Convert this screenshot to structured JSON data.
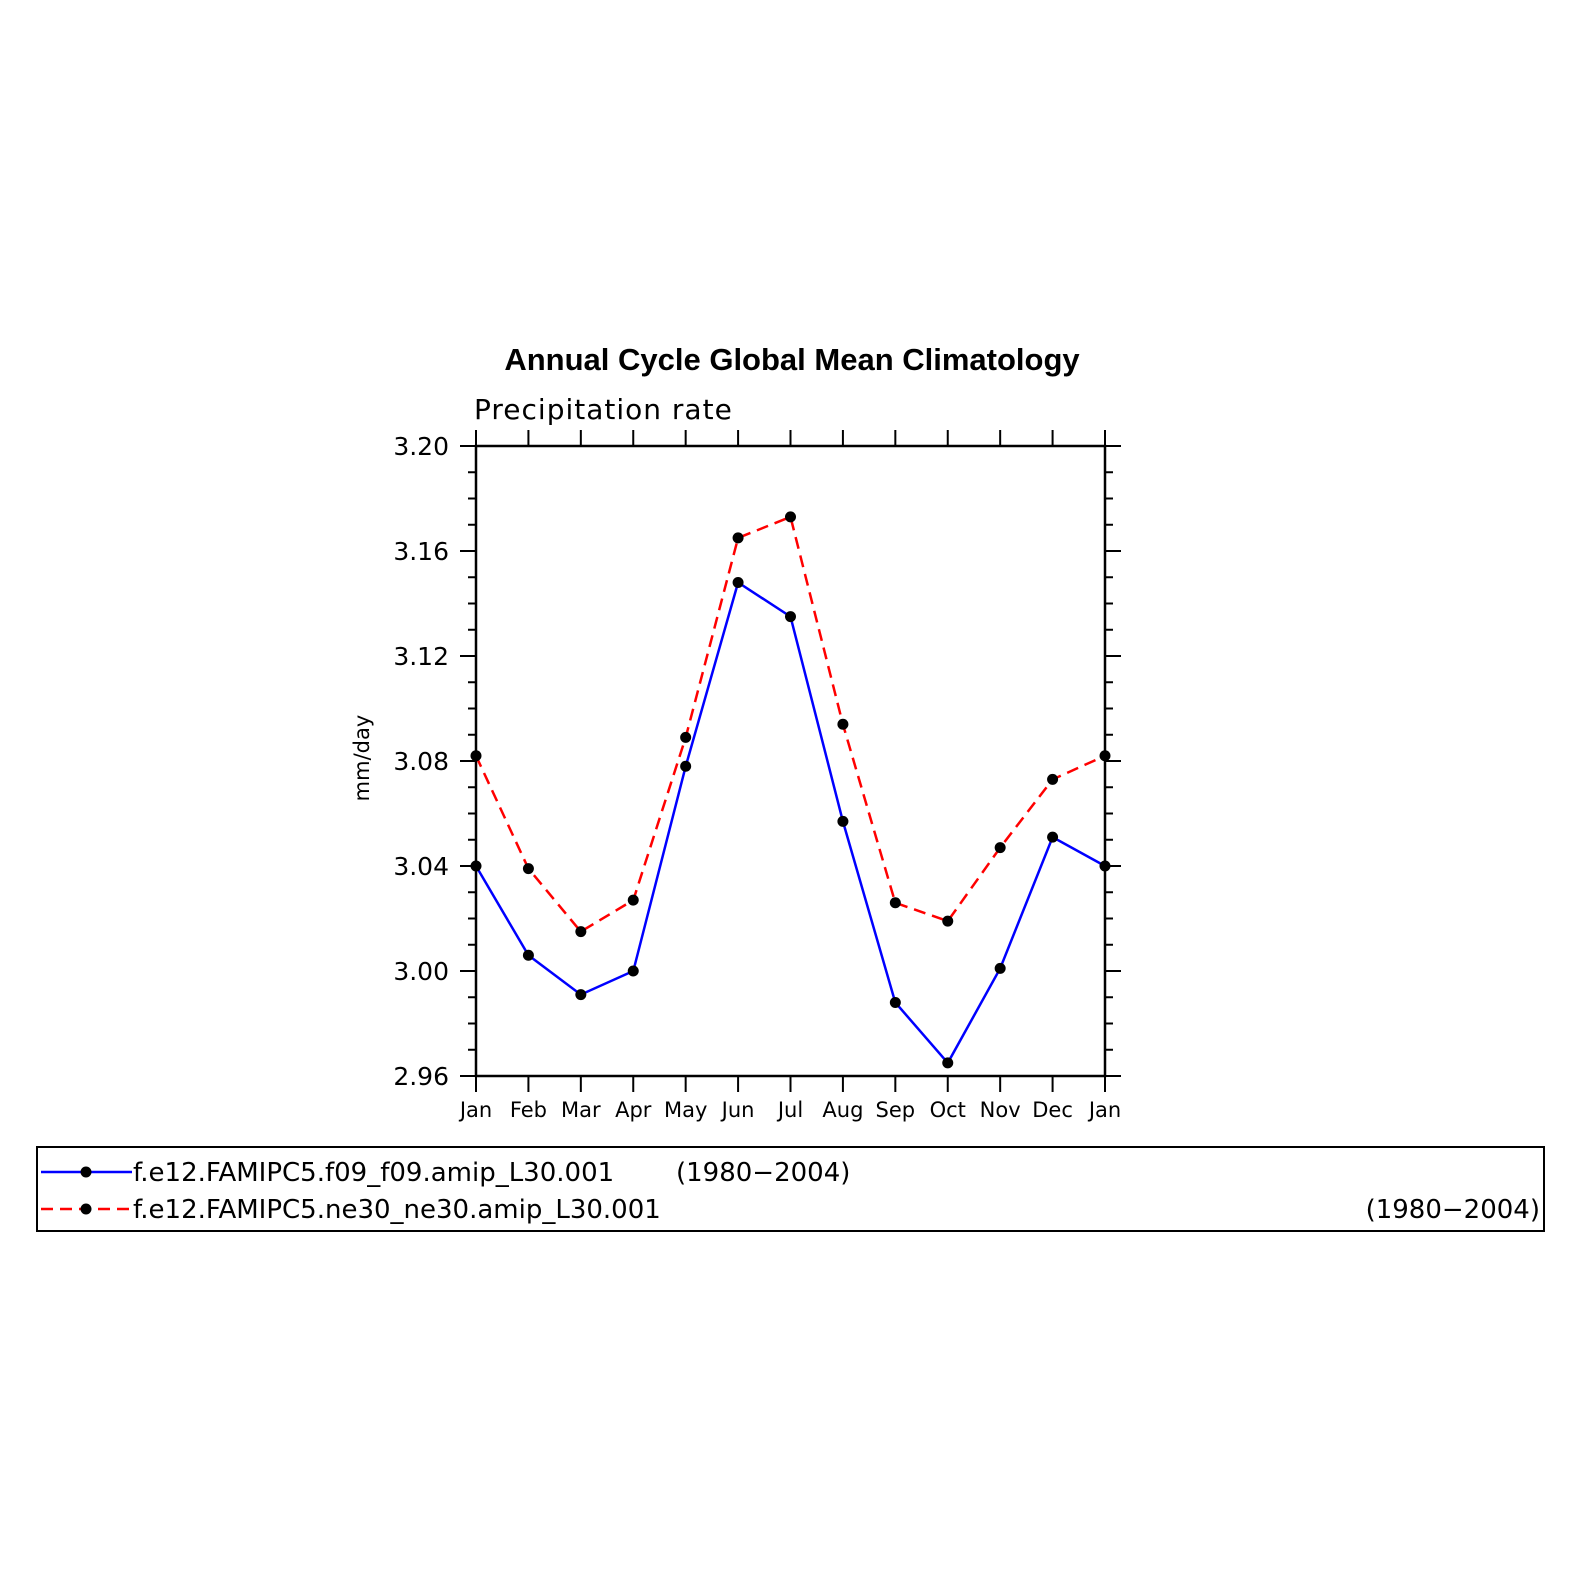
{
  "chart_data": {
    "type": "line",
    "title": "Annual Cycle Global Mean Climatology",
    "subtitle": "Precipitation rate",
    "xlabel": "",
    "ylabel": "mm/day",
    "categories": [
      "Jan",
      "Feb",
      "Mar",
      "Apr",
      "May",
      "Jun",
      "Jul",
      "Aug",
      "Sep",
      "Oct",
      "Nov",
      "Dec",
      "Jan"
    ],
    "ylim": [
      2.96,
      3.2
    ],
    "yticks": [
      "3.20",
      "3.16",
      "3.12",
      "3.08",
      "3.04",
      "3.00",
      "2.96"
    ],
    "grid": false,
    "series": [
      {
        "name": "f.e12.FAMIPC5.f09_f09.amip_L30.001",
        "period": "(1980−2004)",
        "color": "#0000ff",
        "line_style": "solid",
        "marker": "dot",
        "values": [
          3.04,
          3.006,
          2.991,
          3.0,
          3.078,
          3.148,
          3.135,
          3.057,
          2.988,
          2.965,
          3.001,
          3.051,
          3.04
        ]
      },
      {
        "name": "f.e12.FAMIPC5.ne30_ne30.amip_L30.001",
        "period": "(1980−2004)",
        "color": "#ff0000",
        "line_style": "dashed",
        "marker": "dot",
        "values": [
          3.082,
          3.039,
          3.015,
          3.027,
          3.089,
          3.165,
          3.173,
          3.094,
          3.026,
          3.019,
          3.047,
          3.073,
          3.082
        ]
      }
    ],
    "legend_position": "bottom"
  }
}
